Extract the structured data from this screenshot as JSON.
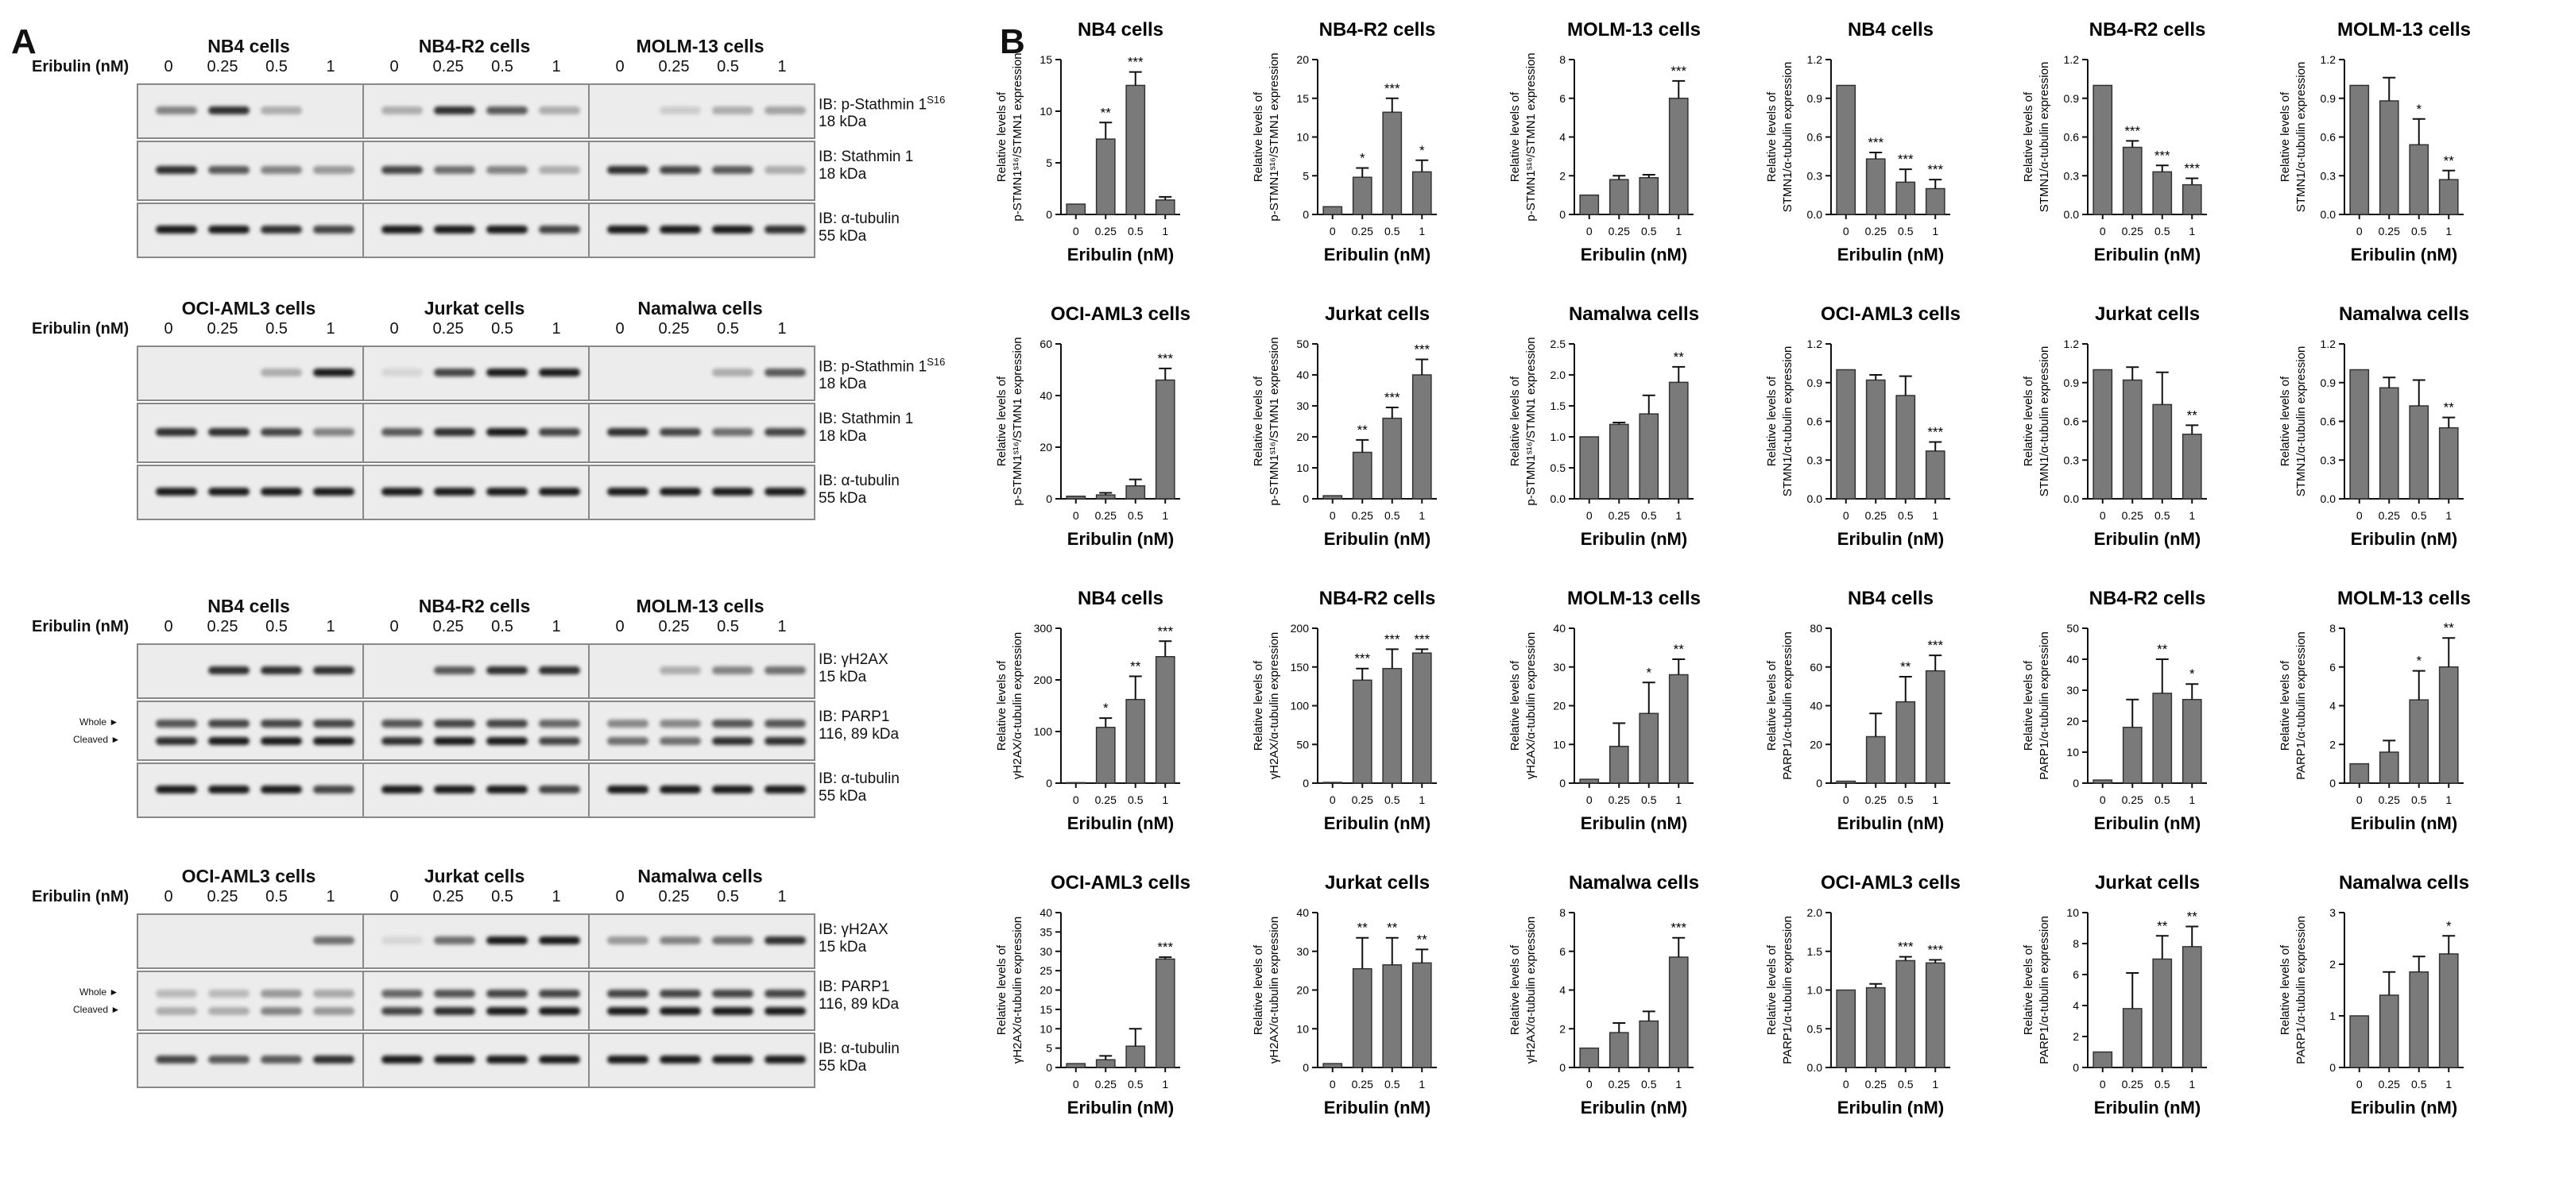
{
  "panels": {
    "a": "A",
    "b": "B"
  },
  "blots": {
    "dose_axis_label": "Eribulin (nM)",
    "doses": [
      "0",
      "0.25",
      "0.5",
      "1"
    ],
    "marker_whole": "Whole ►",
    "marker_cleaved": "Cleaved ►",
    "groups": [
      {
        "cells": [
          "NB4 cells",
          "NB4-R2 cells",
          "MOLM-13 cells"
        ],
        "blots": [
          {
            "name": "IB: p-Stathmin 1",
            "sup": "S16",
            "kda": "18 kDa"
          },
          {
            "name": "IB: Stathmin 1",
            "sup": "",
            "kda": "18 kDa"
          },
          {
            "name": "IB: α-tubulin",
            "sup": "",
            "kda": "55 kDa"
          }
        ]
      },
      {
        "cells": [
          "OCI-AML3 cells",
          "Jurkat cells",
          "Namalwa cells"
        ],
        "blots": [
          {
            "name": "IB: p-Stathmin 1",
            "sup": "S16",
            "kda": "18 kDa"
          },
          {
            "name": "IB: Stathmin 1",
            "sup": "",
            "kda": "18 kDa"
          },
          {
            "name": "IB: α-tubulin",
            "sup": "",
            "kda": "55 kDa"
          }
        ]
      },
      {
        "cells": [
          "NB4 cells",
          "NB4-R2 cells",
          "MOLM-13 cells"
        ],
        "blots": [
          {
            "name": "IB: γH2AX",
            "sup": "",
            "kda": "15 kDa"
          },
          {
            "name": "IB: PARP1",
            "sup": "",
            "kda": "116, 89 kDa"
          },
          {
            "name": "IB: α-tubulin",
            "sup": "",
            "kda": "55 kDa"
          }
        ]
      },
      {
        "cells": [
          "OCI-AML3 cells",
          "Jurkat cells",
          "Namalwa cells"
        ],
        "blots": [
          {
            "name": "IB: γH2AX",
            "sup": "",
            "kda": "15 kDa"
          },
          {
            "name": "IB: PARP1",
            "sup": "",
            "kda": "116, 89 kDa"
          },
          {
            "name": "IB: α-tubulin",
            "sup": "",
            "kda": "55 kDa"
          }
        ]
      }
    ]
  },
  "chart_data": [
    {
      "type": "bar",
      "title": "NB4 cells",
      "ylabel": [
        "Relative levels of",
        "p-STMN1ˢ¹⁶/STMN1 expression"
      ],
      "xlabel": "Eribulin (nM)",
      "categories": [
        "0",
        "0.25",
        "0.5",
        "1"
      ],
      "values": [
        1,
        7.3,
        12.5,
        1.4
      ],
      "errors": [
        0,
        1.6,
        1.3,
        0.3
      ],
      "sig": [
        "",
        "**",
        "***",
        ""
      ],
      "ylim": [
        0,
        15
      ],
      "yticks": [
        0,
        5,
        10,
        15
      ]
    },
    {
      "type": "bar",
      "title": "NB4-R2 cells",
      "ylabel": [
        "Relative levels of",
        "p-STMN1ˢ¹⁶/STMN1 expression"
      ],
      "xlabel": "Eribulin (nM)",
      "categories": [
        "0",
        "0.25",
        "0.5",
        "1"
      ],
      "values": [
        1,
        4.8,
        13.2,
        5.5
      ],
      "errors": [
        0,
        1.2,
        1.8,
        1.5
      ],
      "sig": [
        "",
        "*",
        "***",
        "*"
      ],
      "ylim": [
        0,
        20
      ],
      "yticks": [
        0,
        5,
        10,
        15,
        20
      ]
    },
    {
      "type": "bar",
      "title": "MOLM-13 cells",
      "ylabel": [
        "Relative levels of",
        "p-STMN1ˢ¹⁶/STMN1 expression"
      ],
      "xlabel": "Eribulin (nM)",
      "categories": [
        "0",
        "0.25",
        "0.5",
        "1"
      ],
      "values": [
        1,
        1.8,
        1.9,
        6
      ],
      "errors": [
        0,
        0.2,
        0.15,
        0.9
      ],
      "sig": [
        "",
        "",
        "",
        "***"
      ],
      "ylim": [
        0,
        8
      ],
      "yticks": [
        0,
        2,
        4,
        6,
        8
      ]
    },
    {
      "type": "bar",
      "title": "NB4 cells",
      "ylabel": [
        "Relative levels of",
        "STMN1/α-tubulin expression"
      ],
      "xlabel": "Eribulin (nM)",
      "categories": [
        "0",
        "0.25",
        "0.5",
        "1"
      ],
      "values": [
        1,
        0.43,
        0.25,
        0.2
      ],
      "errors": [
        0,
        0.05,
        0.1,
        0.07
      ],
      "sig": [
        "",
        "***",
        "***",
        "***"
      ],
      "ylim": [
        0,
        1.2
      ],
      "yticks": [
        0.0,
        0.3,
        0.6,
        0.9,
        1.2
      ]
    },
    {
      "type": "bar",
      "title": "NB4-R2 cells",
      "ylabel": [
        "Relative levels of",
        "STMN1/α-tubulin expression"
      ],
      "xlabel": "Eribulin (nM)",
      "categories": [
        "0",
        "0.25",
        "0.5",
        "1"
      ],
      "values": [
        1,
        0.52,
        0.33,
        0.23
      ],
      "errors": [
        0,
        0.05,
        0.05,
        0.05
      ],
      "sig": [
        "",
        "***",
        "***",
        "***"
      ],
      "ylim": [
        0,
        1.2
      ],
      "yticks": [
        0.0,
        0.3,
        0.6,
        0.9,
        1.2
      ]
    },
    {
      "type": "bar",
      "title": "MOLM-13 cells",
      "ylabel": [
        "Relative levels of",
        "STMN1/α-tubulin expression"
      ],
      "xlabel": "Eribulin (nM)",
      "categories": [
        "0",
        "0.25",
        "0.5",
        "1"
      ],
      "values": [
        1,
        0.88,
        0.54,
        0.27
      ],
      "errors": [
        0,
        0.18,
        0.2,
        0.07
      ],
      "sig": [
        "",
        "",
        "*",
        "**"
      ],
      "ylim": [
        0,
        1.2
      ],
      "yticks": [
        0.0,
        0.3,
        0.6,
        0.9,
        1.2
      ]
    },
    {
      "type": "bar",
      "title": "OCI-AML3 cells",
      "ylabel": [
        "Relative levels of",
        "p-STMN1ˢ¹⁶/STMN1 expression"
      ],
      "xlabel": "Eribulin (nM)",
      "categories": [
        "0",
        "0.25",
        "0.5",
        "1"
      ],
      "values": [
        1,
        1.5,
        5,
        46
      ],
      "errors": [
        0,
        0.8,
        2.5,
        4.5
      ],
      "sig": [
        "",
        "",
        "",
        "***"
      ],
      "ylim": [
        0,
        60
      ],
      "yticks": [
        0,
        20,
        40,
        60
      ]
    },
    {
      "type": "bar",
      "title": "Jurkat cells",
      "ylabel": [
        "Relative levels of",
        "p-STMN1ˢ¹⁶/STMN1 expression"
      ],
      "xlabel": "Eribulin (nM)",
      "categories": [
        "0",
        "0.25",
        "0.5",
        "1"
      ],
      "values": [
        1,
        15,
        26,
        40
      ],
      "errors": [
        0,
        4,
        3.5,
        5
      ],
      "sig": [
        "",
        "**",
        "***",
        "***"
      ],
      "ylim": [
        0,
        50
      ],
      "yticks": [
        0,
        10,
        20,
        30,
        40,
        50
      ]
    },
    {
      "type": "bar",
      "title": "Namalwa cells",
      "ylabel": [
        "Relative levels of",
        "p-STMN1ˢ¹⁶/STMN1 expression"
      ],
      "xlabel": "Eribulin (nM)",
      "categories": [
        "0",
        "0.25",
        "0.5",
        "1"
      ],
      "values": [
        1,
        1.2,
        1.37,
        1.88
      ],
      "errors": [
        0,
        0.03,
        0.3,
        0.25
      ],
      "sig": [
        "",
        "",
        "",
        "**"
      ],
      "ylim": [
        0,
        2.5
      ],
      "yticks": [
        0.0,
        0.5,
        1.0,
        1.5,
        2.0,
        2.5
      ]
    },
    {
      "type": "bar",
      "title": "OCI-AML3 cells",
      "ylabel": [
        "Relative levels of",
        "STMN1/α-tubulin expression"
      ],
      "xlabel": "Eribulin (nM)",
      "categories": [
        "0",
        "0.25",
        "0.5",
        "1"
      ],
      "values": [
        1,
        0.92,
        0.8,
        0.37
      ],
      "errors": [
        0,
        0.04,
        0.15,
        0.07
      ],
      "sig": [
        "",
        "",
        "",
        "***"
      ],
      "ylim": [
        0,
        1.2
      ],
      "yticks": [
        0.0,
        0.3,
        0.6,
        0.9,
        1.2
      ]
    },
    {
      "type": "bar",
      "title": "Jurkat cells",
      "ylabel": [
        "Relative levels of",
        "STMN1/α-tubulin expression"
      ],
      "xlabel": "Eribulin (nM)",
      "categories": [
        "0",
        "0.25",
        "0.5",
        "1"
      ],
      "values": [
        1,
        0.92,
        0.73,
        0.5
      ],
      "errors": [
        0,
        0.1,
        0.25,
        0.07
      ],
      "sig": [
        "",
        "",
        "",
        "**"
      ],
      "ylim": [
        0,
        1.2
      ],
      "yticks": [
        0.0,
        0.3,
        0.6,
        0.9,
        1.2
      ]
    },
    {
      "type": "bar",
      "title": "Namalwa cells",
      "ylabel": [
        "Relative levels of",
        "STMN1/α-tubulin expression"
      ],
      "xlabel": "Eribulin (nM)",
      "categories": [
        "0",
        "0.25",
        "0.5",
        "1"
      ],
      "values": [
        1,
        0.86,
        0.72,
        0.55
      ],
      "errors": [
        0,
        0.08,
        0.2,
        0.08
      ],
      "sig": [
        "",
        "",
        "",
        "**"
      ],
      "ylim": [
        0,
        1.2
      ],
      "yticks": [
        0.0,
        0.3,
        0.6,
        0.9,
        1.2
      ]
    },
    {
      "type": "bar",
      "title": "NB4 cells",
      "ylabel": [
        "Relative levels of",
        "γH2AX/α-tubulin expression"
      ],
      "xlabel": "Eribulin (nM)",
      "categories": [
        "0",
        "0.25",
        "0.5",
        "1"
      ],
      "values": [
        1,
        108,
        162,
        245
      ],
      "errors": [
        0,
        18,
        45,
        30
      ],
      "sig": [
        "",
        "*",
        "**",
        "***"
      ],
      "ylim": [
        0,
        300
      ],
      "yticks": [
        0,
        100,
        200,
        300
      ]
    },
    {
      "type": "bar",
      "title": "NB4-R2 cells",
      "ylabel": [
        "Relative levels of",
        "γH2AX/α-tubulin expression"
      ],
      "xlabel": "Eribulin (nM)",
      "categories": [
        "0",
        "0.25",
        "0.5",
        "1"
      ],
      "values": [
        1,
        133,
        148,
        168
      ],
      "errors": [
        0,
        15,
        25,
        5
      ],
      "sig": [
        "",
        "***",
        "***",
        "***"
      ],
      "ylim": [
        0,
        200
      ],
      "yticks": [
        0,
        50,
        100,
        150,
        200
      ]
    },
    {
      "type": "bar",
      "title": "MOLM-13 cells",
      "ylabel": [
        "Relative levels of",
        "γH2AX/α-tubulin expression"
      ],
      "xlabel": "Eribulin (nM)",
      "categories": [
        "0",
        "0.25",
        "0.5",
        "1"
      ],
      "values": [
        1,
        9.5,
        18,
        28
      ],
      "errors": [
        0,
        6,
        8,
        4
      ],
      "sig": [
        "",
        "",
        "*",
        "**"
      ],
      "ylim": [
        0,
        40
      ],
      "yticks": [
        0,
        10,
        20,
        30,
        40
      ]
    },
    {
      "type": "bar",
      "title": "NB4 cells",
      "ylabel": [
        "Relative levels of",
        "PARP1/α-tubulin expression"
      ],
      "xlabel": "Eribulin (nM)",
      "categories": [
        "0",
        "0.25",
        "0.5",
        "1"
      ],
      "values": [
        1,
        24,
        42,
        58
      ],
      "errors": [
        0,
        12,
        13,
        8
      ],
      "sig": [
        "",
        "",
        "**",
        "***"
      ],
      "ylim": [
        0,
        80
      ],
      "yticks": [
        0,
        20,
        40,
        60,
        80
      ]
    },
    {
      "type": "bar",
      "title": "NB4-R2 cells",
      "ylabel": [
        "Relative levels of",
        "PARP1/α-tubulin expression"
      ],
      "xlabel": "Eribulin (nM)",
      "categories": [
        "0",
        "0.25",
        "0.5",
        "1"
      ],
      "values": [
        1,
        18,
        29,
        27
      ],
      "errors": [
        0,
        9,
        11,
        5
      ],
      "sig": [
        "",
        "",
        "**",
        "*"
      ],
      "ylim": [
        0,
        50
      ],
      "yticks": [
        0,
        10,
        20,
        30,
        40,
        50
      ]
    },
    {
      "type": "bar",
      "title": "MOLM-13 cells",
      "ylabel": [
        "Relative levels of",
        "PARP1/α-tubulin expression"
      ],
      "xlabel": "Eribulin (nM)",
      "categories": [
        "0",
        "0.25",
        "0.5",
        "1"
      ],
      "values": [
        1,
        1.6,
        4.3,
        6
      ],
      "errors": [
        0,
        0.6,
        1.5,
        1.5
      ],
      "sig": [
        "",
        "",
        "*",
        "**"
      ],
      "ylim": [
        0,
        8
      ],
      "yticks": [
        0,
        2,
        4,
        6,
        8
      ]
    },
    {
      "type": "bar",
      "title": "OCI-AML3 cells",
      "ylabel": [
        "Relative levels of",
        "γH2AX/α-tubulin expression"
      ],
      "xlabel": "Eribulin (nM)",
      "categories": [
        "0",
        "0.25",
        "0.5",
        "1"
      ],
      "values": [
        1,
        2,
        5.5,
        28
      ],
      "errors": [
        0,
        1,
        4.5,
        0.5
      ],
      "sig": [
        "",
        "",
        "",
        "***"
      ],
      "ylim": [
        0,
        40
      ],
      "yticks": [
        0,
        5,
        10,
        15,
        20,
        25,
        30,
        35,
        40
      ]
    },
    {
      "type": "bar",
      "title": "Jurkat cells",
      "ylabel": [
        "Relative levels of",
        "γH2AX/α-tubulin expression"
      ],
      "xlabel": "Eribulin (nM)",
      "categories": [
        "0",
        "0.25",
        "0.5",
        "1"
      ],
      "values": [
        1,
        25.5,
        26.5,
        27
      ],
      "errors": [
        0,
        8,
        7,
        3.5
      ],
      "sig": [
        "",
        "**",
        "**",
        "**"
      ],
      "ylim": [
        0,
        40
      ],
      "yticks": [
        0,
        10,
        20,
        30,
        40
      ]
    },
    {
      "type": "bar",
      "title": "Namalwa cells",
      "ylabel": [
        "Relative levels of",
        "γH2AX/α-tubulin expression"
      ],
      "xlabel": "Eribulin (nM)",
      "categories": [
        "0",
        "0.25",
        "0.5",
        "1"
      ],
      "values": [
        1,
        1.8,
        2.4,
        5.7
      ],
      "errors": [
        0,
        0.5,
        0.5,
        1
      ],
      "sig": [
        "",
        "",
        "",
        "***"
      ],
      "ylim": [
        0,
        8
      ],
      "yticks": [
        0,
        2,
        4,
        6,
        8
      ]
    },
    {
      "type": "bar",
      "title": "OCI-AML3 cells",
      "ylabel": [
        "Relative levels of",
        "PARP1/α-tubulin expression"
      ],
      "xlabel": "Eribulin (nM)",
      "categories": [
        "0",
        "0.25",
        "0.5",
        "1"
      ],
      "values": [
        1,
        1.03,
        1.38,
        1.35
      ],
      "errors": [
        0,
        0.05,
        0.05,
        0.04
      ],
      "sig": [
        "",
        "",
        "***",
        "***"
      ],
      "ylim": [
        0,
        2.0
      ],
      "yticks": [
        0.0,
        0.5,
        1.0,
        1.5,
        2.0
      ]
    },
    {
      "type": "bar",
      "title": "Jurkat cells",
      "ylabel": [
        "Relative levels of",
        "PARP1/α-tubulin expression"
      ],
      "xlabel": "Eribulin (nM)",
      "categories": [
        "0",
        "0.25",
        "0.5",
        "1"
      ],
      "values": [
        1,
        3.8,
        7,
        7.8
      ],
      "errors": [
        0,
        2.3,
        1.5,
        1.3
      ],
      "sig": [
        "",
        "",
        "**",
        "**"
      ],
      "ylim": [
        0,
        10
      ],
      "yticks": [
        0,
        2,
        4,
        6,
        8,
        10
      ]
    },
    {
      "type": "bar",
      "title": "Namalwa cells",
      "ylabel": [
        "Relative levels of",
        "PARP1/α-tubulin expression"
      ],
      "xlabel": "Eribulin (nM)",
      "categories": [
        "0",
        "0.25",
        "0.5",
        "1"
      ],
      "values": [
        1,
        1.4,
        1.85,
        2.2
      ],
      "errors": [
        0,
        0.45,
        0.3,
        0.35
      ],
      "sig": [
        "",
        "",
        "",
        "*"
      ],
      "ylim": [
        0,
        3
      ],
      "yticks": [
        0,
        1,
        2,
        3
      ]
    }
  ]
}
